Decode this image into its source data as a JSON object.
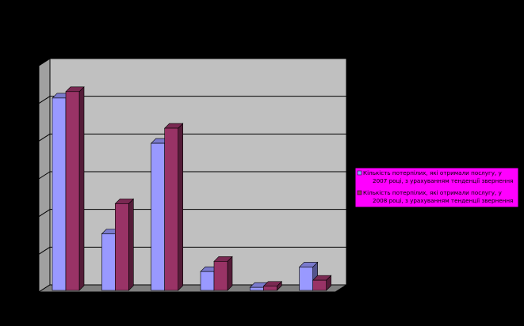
{
  "colors": {
    "background": "#000000",
    "plot_wall": "#c0c0c0",
    "plot_side": "#a0a0a0",
    "plot_floor": "#808080",
    "gridline": "#000000",
    "legend_fill": "#ff00ff"
  },
  "chart_data": {
    "type": "bar",
    "bar_style": "3d-clustered",
    "categories": [
      "",
      "",
      "",
      "",
      "",
      ""
    ],
    "series": [
      {
        "name": "Кількість потерпілих, які отримали послугу, у 2007 році, з урахуванням тенденції звернення",
        "color": "#9999ff",
        "values": [
          5100,
          1500,
          3900,
          500,
          80,
          620
        ]
      },
      {
        "name": "Кількість потерпілих, які отримали послугу, у 2008 році, з урахуванням тенденції звернення",
        "color": "#993366",
        "values": [
          5270,
          2300,
          4300,
          770,
          110,
          270
        ]
      }
    ],
    "ylim": [
      0,
      6000
    ],
    "y_major_step": 1000,
    "grid": true,
    "legend_position": "right"
  }
}
